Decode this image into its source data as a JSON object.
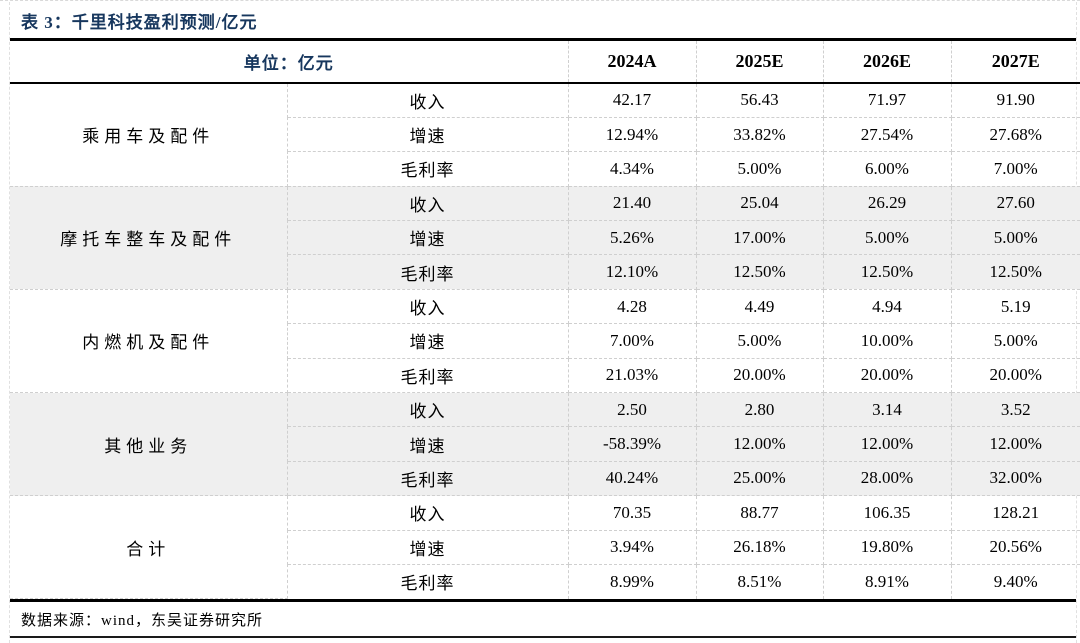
{
  "title": "表 3：千里科技盈利预测/亿元",
  "header": {
    "unit_label": "单位：亿元",
    "years": [
      "2024A",
      "2025E",
      "2026E",
      "2027E"
    ]
  },
  "groups": [
    {
      "name": "乘用车及配件",
      "shaded": false,
      "rows": [
        {
          "metric": "收入",
          "values": [
            "42.17",
            "56.43",
            "71.97",
            "91.90"
          ]
        },
        {
          "metric": "增速",
          "values": [
            "12.94%",
            "33.82%",
            "27.54%",
            "27.68%"
          ]
        },
        {
          "metric": "毛利率",
          "values": [
            "4.34%",
            "5.00%",
            "6.00%",
            "7.00%"
          ]
        }
      ]
    },
    {
      "name": "摩托车整车及配件",
      "shaded": true,
      "rows": [
        {
          "metric": "收入",
          "values": [
            "21.40",
            "25.04",
            "26.29",
            "27.60"
          ]
        },
        {
          "metric": "增速",
          "values": [
            "5.26%",
            "17.00%",
            "5.00%",
            "5.00%"
          ]
        },
        {
          "metric": "毛利率",
          "values": [
            "12.10%",
            "12.50%",
            "12.50%",
            "12.50%"
          ]
        }
      ]
    },
    {
      "name": "内燃机及配件",
      "shaded": false,
      "rows": [
        {
          "metric": "收入",
          "values": [
            "4.28",
            "4.49",
            "4.94",
            "5.19"
          ]
        },
        {
          "metric": "增速",
          "values": [
            "7.00%",
            "5.00%",
            "10.00%",
            "5.00%"
          ]
        },
        {
          "metric": "毛利率",
          "values": [
            "21.03%",
            "20.00%",
            "20.00%",
            "20.00%"
          ]
        }
      ]
    },
    {
      "name": "其他业务",
      "shaded": true,
      "rows": [
        {
          "metric": "收入",
          "values": [
            "2.50",
            "2.80",
            "3.14",
            "3.52"
          ]
        },
        {
          "metric": "增速",
          "values": [
            "-58.39%",
            "12.00%",
            "12.00%",
            "12.00%"
          ]
        },
        {
          "metric": "毛利率",
          "values": [
            "40.24%",
            "25.00%",
            "28.00%",
            "32.00%"
          ]
        }
      ]
    },
    {
      "name": "合计",
      "shaded": false,
      "rows": [
        {
          "metric": "收入",
          "values": [
            "70.35",
            "88.77",
            "106.35",
            "128.21"
          ]
        },
        {
          "metric": "增速",
          "values": [
            "3.94%",
            "26.18%",
            "19.80%",
            "20.56%"
          ]
        },
        {
          "metric": "毛利率",
          "values": [
            "8.99%",
            "8.51%",
            "8.91%",
            "9.40%"
          ]
        }
      ]
    }
  ],
  "footer": {
    "source": "数据来源：wind，东吴证券研究所"
  },
  "colors": {
    "accent_navy": "#17375E",
    "row_shade": "#EFEFEF",
    "grid_dash": "#CFCFCF",
    "border": "#000000"
  }
}
